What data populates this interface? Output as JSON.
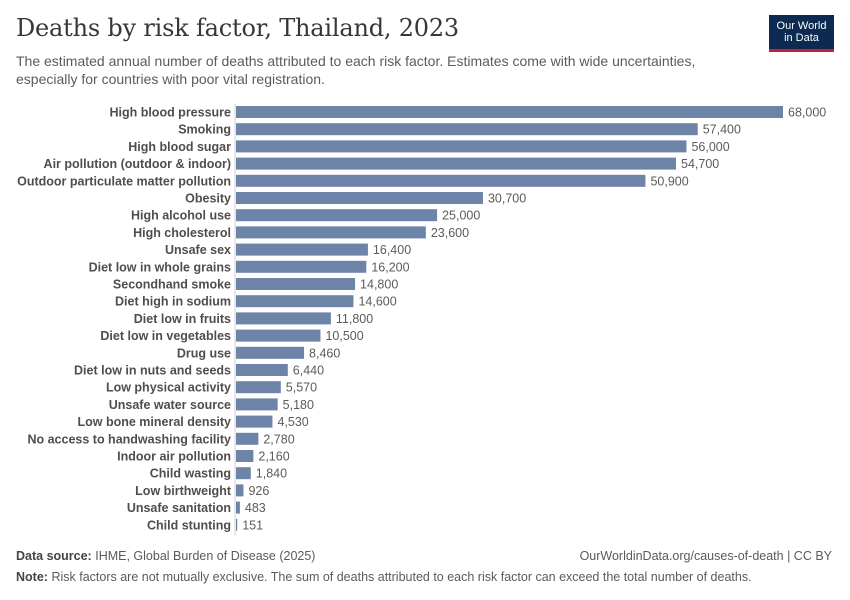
{
  "header": {
    "title": "Deaths by risk factor, Thailand, 2023",
    "subtitle": "The estimated annual number of deaths attributed to each risk factor. Estimates come with wide uncertainties, especially for countries with poor vital registration."
  },
  "logo": {
    "line1": "Our World",
    "line2": "in Data",
    "bg_color": "#0d2a52",
    "accent_color": "#c5203a"
  },
  "chart_data": {
    "type": "bar",
    "orientation": "horizontal",
    "title": "Deaths by risk factor, Thailand, 2023",
    "xlabel": "",
    "ylabel": "",
    "xlim": [
      0,
      68000
    ],
    "grid": false,
    "bar_color": "#6d83a8",
    "categories": [
      "High blood pressure",
      "Smoking",
      "High blood sugar",
      "Air pollution (outdoor & indoor)",
      "Outdoor particulate matter pollution",
      "Obesity",
      "High alcohol use",
      "High cholesterol",
      "Unsafe sex",
      "Diet low in whole grains",
      "Secondhand smoke",
      "Diet high in sodium",
      "Diet low in fruits",
      "Diet low in vegetables",
      "Drug use",
      "Diet low in nuts and seeds",
      "Low physical activity",
      "Unsafe water source",
      "Low bone mineral density",
      "No access to handwashing facility",
      "Indoor air pollution",
      "Child wasting",
      "Low birthweight",
      "Unsafe sanitation",
      "Child stunting"
    ],
    "values": [
      68000,
      57400,
      56000,
      54700,
      50900,
      30700,
      25000,
      23600,
      16400,
      16200,
      14800,
      14600,
      11800,
      10500,
      8460,
      6440,
      5570,
      5180,
      4530,
      2780,
      2160,
      1840,
      926,
      483,
      151
    ],
    "value_labels": [
      "68,000",
      "57,400",
      "56,000",
      "54,700",
      "50,900",
      "30,700",
      "25,000",
      "23,600",
      "16,400",
      "16,200",
      "14,800",
      "14,600",
      "11,800",
      "10,500",
      "8,460",
      "6,440",
      "5,570",
      "5,180",
      "4,530",
      "2,780",
      "2,160",
      "1,840",
      "926",
      "483",
      "151"
    ]
  },
  "footer": {
    "source_label": "Data source:",
    "source_text": "IHME, Global Burden of Disease (2025)",
    "url": "OurWorldinData.org/causes-of-death | CC BY",
    "note_label": "Note:",
    "note_text": "Risk factors are not mutually exclusive. The sum of deaths attributed to each risk factor can exceed the total number of deaths."
  }
}
